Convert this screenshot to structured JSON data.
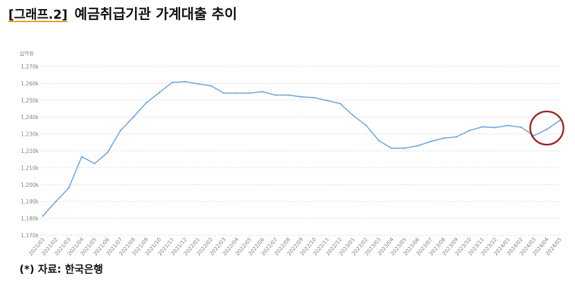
{
  "header": {
    "tag": "[그래프.2]",
    "title": "예금취급기관 가계대출 추이"
  },
  "footer": {
    "source": "(*) 자료: 한국은행"
  },
  "colors": {
    "line": "#6fa8dc",
    "highlight_circle": "#a51c1c"
  },
  "chart_data": {
    "type": "line",
    "ylabel": "십억원",
    "ylim": [
      1170,
      1270
    ],
    "yticks": [
      {
        "v": 1170,
        "label": "1,170k"
      },
      {
        "v": 1180,
        "label": "1,180k"
      },
      {
        "v": 1190,
        "label": "1,190k"
      },
      {
        "v": 1200,
        "label": "1,200k"
      },
      {
        "v": 1210,
        "label": "1,210k"
      },
      {
        "v": 1220,
        "label": "1,220k"
      },
      {
        "v": 1230,
        "label": "1,230k"
      },
      {
        "v": 1240,
        "label": "1,240k"
      },
      {
        "v": 1250,
        "label": "1,250k"
      },
      {
        "v": 1260,
        "label": "1,260k"
      },
      {
        "v": 1270,
        "label": "1,270k"
      }
    ],
    "grid": true,
    "x": [
      "2021/01",
      "2021/02",
      "2021/03",
      "2021/04",
      "2021/05",
      "2021/06",
      "2021/07",
      "2021/08",
      "2021/09",
      "2021/10",
      "2021/11",
      "2021/12",
      "2022/01",
      "2022/02",
      "2022/03",
      "2022/04",
      "2022/05",
      "2022/06",
      "2022/07",
      "2022/08",
      "2022/09",
      "2022/10",
      "2022/11",
      "2022/12",
      "2023/01",
      "2023/02",
      "2023/03",
      "2023/04",
      "2023/05",
      "2023/06",
      "2023/07",
      "2023/08",
      "2023/09",
      "2023/10",
      "2023/11",
      "2023/12",
      "2024/01",
      "2024/02",
      "2024/03",
      "2024/04",
      "2024/05"
    ],
    "values": [
      1181.5,
      1190,
      1198,
      1216.5,
      1212.5,
      1219,
      1232,
      1240,
      1248.5,
      1254.5,
      1260.5,
      1261,
      1259.7,
      1258.5,
      1254.2,
      1254.2,
      1254.2,
      1255,
      1253,
      1253,
      1252,
      1251.5,
      1249.8,
      1248,
      1241,
      1235.2,
      1226,
      1221.5,
      1221.6,
      1223,
      1225.5,
      1227.5,
      1228.3,
      1232,
      1234.2,
      1233.8,
      1235,
      1234,
      1229,
      1232.7,
      1238
    ],
    "highlight": {
      "from": "2024/03",
      "to": "2024/05"
    }
  }
}
